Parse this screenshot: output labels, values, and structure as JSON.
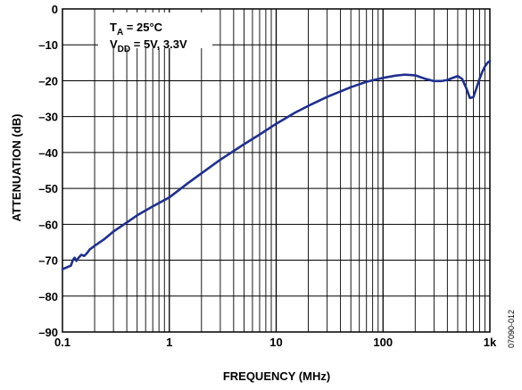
{
  "chart_data": {
    "type": "line",
    "xlabel": "FREQUENCY (MHz)",
    "ylabel": "ATTENUATION (dB)",
    "xscale": "log",
    "xlim": [
      0.1,
      1000
    ],
    "ylim": [
      -90,
      0
    ],
    "grid": true,
    "line_color": "#1f2f8f",
    "x_ticks": [
      {
        "value": 0.1,
        "label": "0.1"
      },
      {
        "value": 1,
        "label": "1"
      },
      {
        "value": 10,
        "label": "10"
      },
      {
        "value": 100,
        "label": "100"
      },
      {
        "value": 1000,
        "label": "1k"
      }
    ],
    "y_ticks": [
      {
        "value": 0,
        "label": "0"
      },
      {
        "value": -10,
        "label": "–10"
      },
      {
        "value": -20,
        "label": "–20"
      },
      {
        "value": -30,
        "label": "–30"
      },
      {
        "value": -40,
        "label": "–40"
      },
      {
        "value": -50,
        "label": "–50"
      },
      {
        "value": -60,
        "label": "–60"
      },
      {
        "value": -70,
        "label": "–70"
      },
      {
        "value": -80,
        "label": "–80"
      },
      {
        "value": -90,
        "label": "–90"
      }
    ],
    "annotation": {
      "line1_main": "T",
      "line1_sub": "A",
      "line1_rest": " = 25°C",
      "line2_main": "V",
      "line2_sub": "DD",
      "line2_rest": " = 5V, 3.3V"
    },
    "figure_id": "07090-012",
    "series": [
      {
        "x": [
          0.1,
          0.11,
          0.12,
          0.125,
          0.13,
          0.135,
          0.14,
          0.15,
          0.16,
          0.17,
          0.18,
          0.19,
          0.2,
          0.25,
          0.3,
          0.4,
          0.5,
          0.7,
          1,
          1.5,
          2,
          3,
          5,
          7,
          10,
          15,
          20,
          30,
          50,
          70,
          100,
          130,
          160,
          200,
          250,
          300,
          350,
          400,
          450,
          500,
          550,
          600,
          650,
          700,
          750,
          800,
          850,
          900,
          950,
          1000
        ],
        "y": [
          -72.5,
          -72,
          -71.5,
          -70,
          -69.3,
          -70.2,
          -69.5,
          -68.5,
          -68.8,
          -68,
          -67,
          -66.5,
          -66,
          -64,
          -62,
          -59.5,
          -57.5,
          -55,
          -52.5,
          -48.5,
          -45.8,
          -42,
          -37.7,
          -35,
          -32,
          -28.9,
          -27,
          -24.5,
          -21.8,
          -20.3,
          -19.2,
          -18.6,
          -18.3,
          -18.5,
          -19.5,
          -20.1,
          -20.1,
          -19.8,
          -19.2,
          -18.7,
          -19.5,
          -22,
          -24.8,
          -24.6,
          -22,
          -19.5,
          -17.5,
          -16,
          -15,
          -14.5
        ]
      }
    ]
  }
}
